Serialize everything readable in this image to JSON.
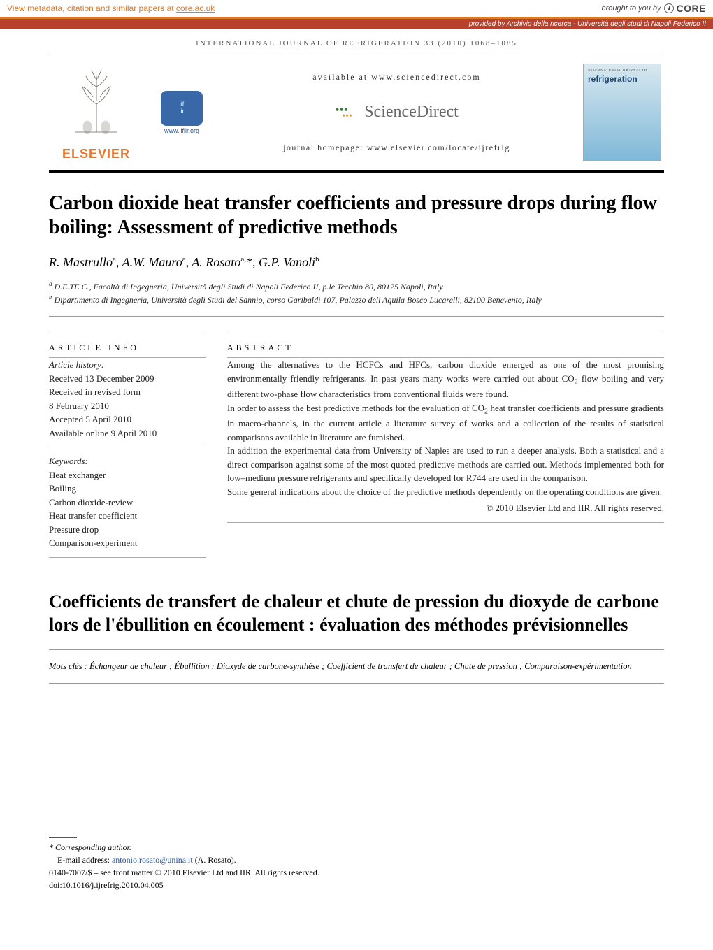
{
  "core_banner": {
    "left_prefix": "View metadata, citation and similar papers at ",
    "left_link": "core.ac.uk",
    "right_text": "brought to you by",
    "logo": "CORE"
  },
  "provided_banner": {
    "prefix": "provided by ",
    "source": "Archivio della ricerca - Università degli studi di Napoli Federico II"
  },
  "running_head": "INTERNATIONAL JOURNAL OF REFRIGERATION 33 (2010) 1068–1085",
  "masthead": {
    "elsevier": "ELSEVIER",
    "iifir_link": "www.iifiir.org",
    "available": "available at www.sciencedirect.com",
    "sciencedirect": "ScienceDirect",
    "homepage": "journal homepage: www.elsevier.com/locate/ijrefrig",
    "cover_small": "INTERNATIONAL JOURNAL OF",
    "cover_title": "refrigeration"
  },
  "title": "Carbon dioxide heat transfer coefficients and pressure drops during flow boiling: Assessment of predictive methods",
  "authors_html": "R. Mastrullo<sup>a</sup>, A.W. Mauro<sup>a</sup>, A. Rosato<sup>a,</sup>*, G.P. Vanoli<sup>b</sup>",
  "affiliations": {
    "a": "D.E.TE.C., Facoltà di Ingegneria, Università degli Studi di Napoli Federico II, p.le Tecchio 80, 80125 Napoli, Italy",
    "b": "Dipartimento di Ingegneria, Università degli Studi del Sannio, corso Garibaldi 107, Palazzo dell'Aquila Bosco Lucarelli, 82100 Benevento, Italy"
  },
  "article_info": {
    "head": "ARTICLE INFO",
    "history_label": "Article history:",
    "received": "Received 13 December 2009",
    "revised1": "Received in revised form",
    "revised2": "8 February 2010",
    "accepted": "Accepted 5 April 2010",
    "online": "Available online 9 April 2010",
    "keywords_label": "Keywords:",
    "keywords": [
      "Heat exchanger",
      "Boiling",
      "Carbon dioxide-review",
      "Heat transfer coefficient",
      "Pressure drop",
      "Comparison-experiment"
    ]
  },
  "abstract": {
    "head": "ABSTRACT",
    "p1": "Among the alternatives to the HCFCs and HFCs, carbon dioxide emerged as one of the most promising environmentally friendly refrigerants. In past years many works were carried out about CO",
    "p1b": " flow boiling and very different two-phase flow characteristics from conventional fluids were found.",
    "p2": "In order to assess the best predictive methods for the evaluation of CO",
    "p2b": " heat transfer coefficients and pressure gradients in macro-channels, in the current article a literature survey of works and a collection of the results of statistical comparisons available in literature are furnished.",
    "p3": "In addition the experimental data from University of Naples are used to run a deeper analysis. Both a statistical and a direct comparison against some of the most quoted predictive methods are carried out. Methods implemented both for low–medium pressure refrigerants and specifically developed for R744 are used in the comparison.",
    "p4": "Some general indications about the choice of the predictive methods dependently on the operating conditions are given.",
    "copyright": "© 2010 Elsevier Ltd and IIR. All rights reserved."
  },
  "french_title": "Coefficients de transfert de chaleur et chute de pression du dioxyde de carbone lors de l'ébullition en écoulement : évaluation des méthodes prévisionnelles",
  "mots_cles": "Mots clés : Échangeur de chaleur ; Ébullition ; Dioxyde de carbone-synthèse ; Coefficient de transfert de chaleur ; Chute de pression ; Comparaison-expérimentation",
  "footer": {
    "corr": "* Corresponding author.",
    "email_label": "E-mail address: ",
    "email": "antonio.rosato@unina.it",
    "email_person": " (A. Rosato).",
    "issn": "0140-7007/$ – see front matter © 2010 Elsevier Ltd and IIR. All rights reserved.",
    "doi": "doi:10.1016/j.ijrefrig.2010.04.005"
  }
}
